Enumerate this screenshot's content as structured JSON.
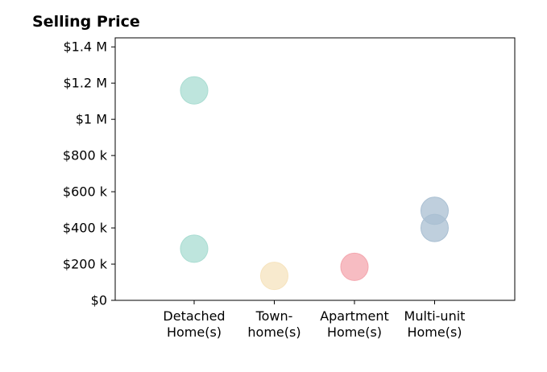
{
  "chart_data": {
    "type": "scatter",
    "title": "Selling Price",
    "xlabel": "",
    "ylabel": "",
    "categories": [
      "Detached\nHome(s)",
      "Town-\nhome(s)",
      "Apartment\nHome(s)",
      "Multi-unit\nHome(s)"
    ],
    "ylim": [
      0,
      1450000
    ],
    "yticks": [
      0,
      200000,
      400000,
      600000,
      800000,
      1000000,
      1200000,
      1400000
    ],
    "ytick_labels": [
      "$0",
      "$200 k",
      "$400 k",
      "$600 k",
      "$800 k",
      "$1 M",
      "$1.2 M",
      "$1.4 M"
    ],
    "grid": false,
    "points": [
      {
        "category": "Detached\nHome(s)",
        "y": 1160000,
        "color": "#a8dcd1"
      },
      {
        "category": "Detached\nHome(s)",
        "y": 285000,
        "color": "#a8dcd1"
      },
      {
        "category": "Town-\nhome(s)",
        "y": 135000,
        "color": "#f6e3bd"
      },
      {
        "category": "Apartment\nHome(s)",
        "y": 185000,
        "color": "#f4a6ae"
      },
      {
        "category": "Multi-unit\nHome(s)",
        "y": 495000,
        "color": "#a9bfd2"
      },
      {
        "category": "Multi-unit\nHome(s)",
        "y": 400000,
        "color": "#a9bfd2"
      }
    ]
  }
}
